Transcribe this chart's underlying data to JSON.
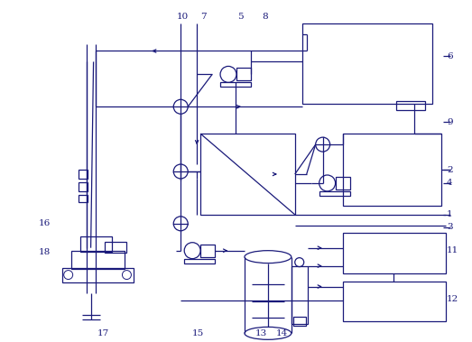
{
  "figsize": [
    5.23,
    3.79
  ],
  "dpi": 100,
  "bg_color": "#ffffff",
  "line_color": "#1a1a7a",
  "lw": 0.9
}
